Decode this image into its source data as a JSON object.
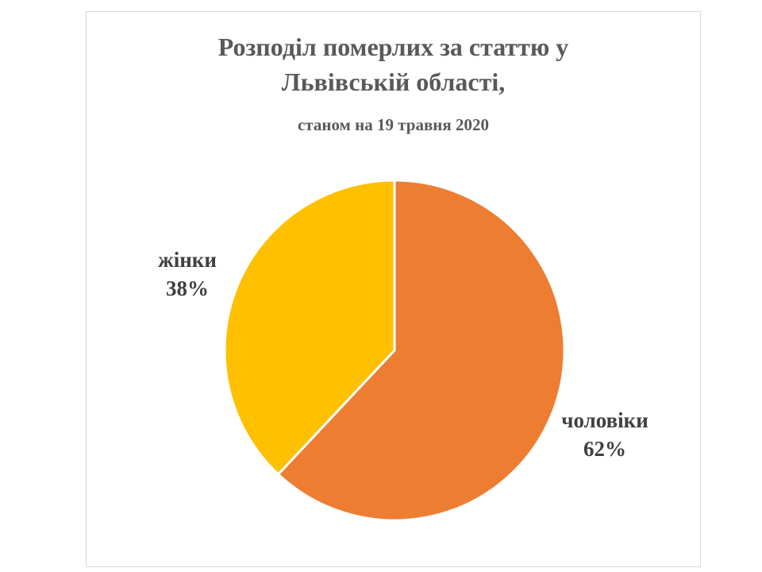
{
  "chart_data": {
    "type": "pie",
    "title_line1": "Розподіл померлих за статтю у",
    "title_line2": "Львівській області,",
    "subtitle": "станом на 19 травня 2020",
    "slices": [
      {
        "name": "чоловіки",
        "value": 62,
        "label": "62%",
        "color": "#ED7D31"
      },
      {
        "name": "жінки",
        "value": 38,
        "label": "38%",
        "color": "#FFC000"
      }
    ],
    "start_angle_deg": 0,
    "direction": "clockwise"
  }
}
